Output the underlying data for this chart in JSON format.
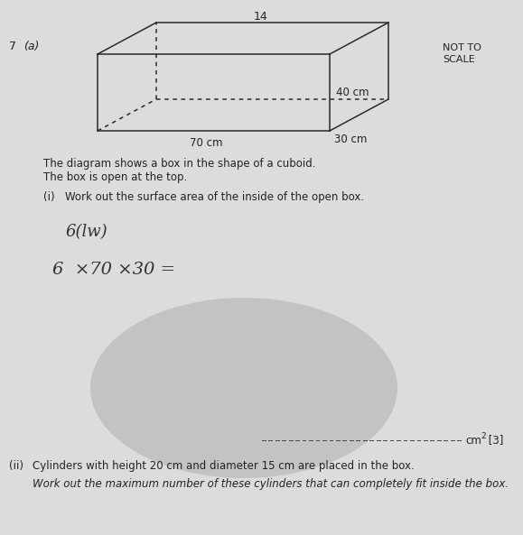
{
  "page_number": "14",
  "question_number": "7",
  "question_part": "(a)",
  "not_to_scale": "NOT TO\nSCALE",
  "dim_40": "40 cm",
  "dim_30": "30 cm",
  "dim_70": "70 cm",
  "description_line1": "The diagram shows a box in the shape of a cuboid.",
  "description_line2": "The box is open at the top.",
  "part_i_label": "(i)",
  "part_i_text": "Work out the surface area of the inside of the open box.",
  "handwritten_1": "6(lw)",
  "handwritten_2": "6  ×70 ×30 =",
  "part_ii_label": "(ii)",
  "part_ii_text": "Cylinders with height 20 cm and diameter 15 cm are placed in the box.",
  "part_ii_text2": "Work out the maximum number of these cylinders that can completely fit inside the box.",
  "bg_light": "#e8e8e8",
  "bg_shadow": "#b8b8b8",
  "line_color": "#333333"
}
